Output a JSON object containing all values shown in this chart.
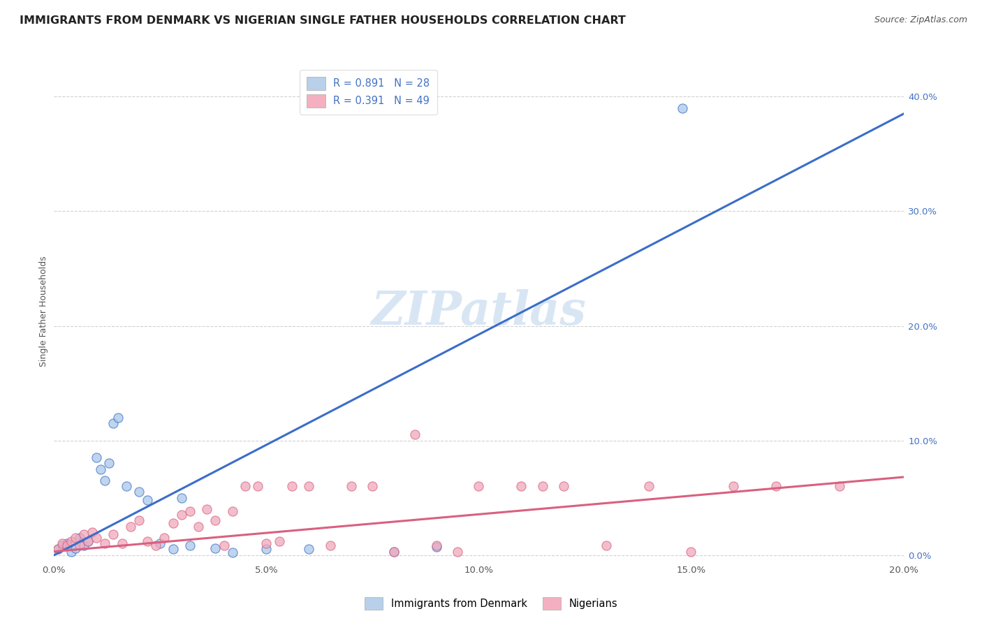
{
  "title": "IMMIGRANTS FROM DENMARK VS NIGERIAN SINGLE FATHER HOUSEHOLDS CORRELATION CHART",
  "source": "Source: ZipAtlas.com",
  "ylabel": "Single Father Households",
  "xlim": [
    0.0,
    0.2
  ],
  "ylim": [
    -0.005,
    0.43
  ],
  "xticks": [
    0.0,
    0.05,
    0.1,
    0.15,
    0.2
  ],
  "yticks_right": [
    0.0,
    0.1,
    0.2,
    0.3,
    0.4
  ],
  "xticklabels": [
    "0.0%",
    "5.0%",
    "10.0%",
    "15.0%",
    "20.0%"
  ],
  "yticklabels_right": [
    "0.0%",
    "10.0%",
    "20.0%",
    "30.0%",
    "40.0%"
  ],
  "legend_items": [
    {
      "label": "R = 0.891   N = 28",
      "patch_color": "#b8d0ea",
      "text_color": "#3355bb"
    },
    {
      "label": "R = 0.391   N = 49",
      "patch_color": "#f4b0c0",
      "text_color": "#cc3366"
    }
  ],
  "legend_labels_bottom": [
    "Immigrants from Denmark",
    "Nigerians"
  ],
  "watermark": "ZIPatlas",
  "blue_scatter_x": [
    0.001,
    0.002,
    0.003,
    0.004,
    0.005,
    0.006,
    0.007,
    0.008,
    0.01,
    0.011,
    0.012,
    0.013,
    0.014,
    0.015,
    0.017,
    0.02,
    0.022,
    0.025,
    0.028,
    0.03,
    0.032,
    0.038,
    0.042,
    0.05,
    0.06,
    0.08,
    0.09,
    0.148
  ],
  "blue_scatter_y": [
    0.005,
    0.008,
    0.01,
    0.003,
    0.006,
    0.015,
    0.008,
    0.012,
    0.085,
    0.075,
    0.065,
    0.08,
    0.115,
    0.12,
    0.06,
    0.055,
    0.048,
    0.01,
    0.005,
    0.05,
    0.008,
    0.006,
    0.002,
    0.005,
    0.005,
    0.003,
    0.007,
    0.39
  ],
  "pink_scatter_x": [
    0.001,
    0.002,
    0.003,
    0.004,
    0.005,
    0.006,
    0.007,
    0.008,
    0.009,
    0.01,
    0.012,
    0.014,
    0.016,
    0.018,
    0.02,
    0.022,
    0.024,
    0.026,
    0.028,
    0.03,
    0.032,
    0.034,
    0.036,
    0.038,
    0.04,
    0.042,
    0.045,
    0.048,
    0.05,
    0.053,
    0.056,
    0.06,
    0.065,
    0.07,
    0.075,
    0.08,
    0.085,
    0.09,
    0.095,
    0.1,
    0.11,
    0.115,
    0.12,
    0.13,
    0.14,
    0.15,
    0.16,
    0.17,
    0.185
  ],
  "pink_scatter_y": [
    0.005,
    0.01,
    0.008,
    0.012,
    0.015,
    0.008,
    0.018,
    0.012,
    0.02,
    0.015,
    0.01,
    0.018,
    0.01,
    0.025,
    0.03,
    0.012,
    0.008,
    0.015,
    0.028,
    0.035,
    0.038,
    0.025,
    0.04,
    0.03,
    0.008,
    0.038,
    0.06,
    0.06,
    0.01,
    0.012,
    0.06,
    0.06,
    0.008,
    0.06,
    0.06,
    0.003,
    0.105,
    0.008,
    0.003,
    0.06,
    0.06,
    0.06,
    0.06,
    0.008,
    0.06,
    0.003,
    0.06,
    0.06,
    0.06
  ],
  "blue_line_x": [
    -0.002,
    0.2
  ],
  "blue_line_y": [
    -0.004,
    0.385
  ],
  "pink_line_x": [
    0.0,
    0.2
  ],
  "pink_line_y": [
    0.003,
    0.068
  ],
  "blue_color": "#3B6DC9",
  "pink_color": "#d96080",
  "scatter_blue": "#a8c8e8",
  "scatter_pink": "#f0a8bc",
  "grid_color": "#cccccc",
  "background_color": "#ffffff",
  "title_fontsize": 11.5,
  "source_fontsize": 9,
  "watermark_fontsize": 48,
  "watermark_color": "#d8e6f4",
  "axis_label_fontsize": 9,
  "tick_fontsize": 9.5,
  "tick_color_right": "#4472c4",
  "legend_fontsize": 10.5
}
